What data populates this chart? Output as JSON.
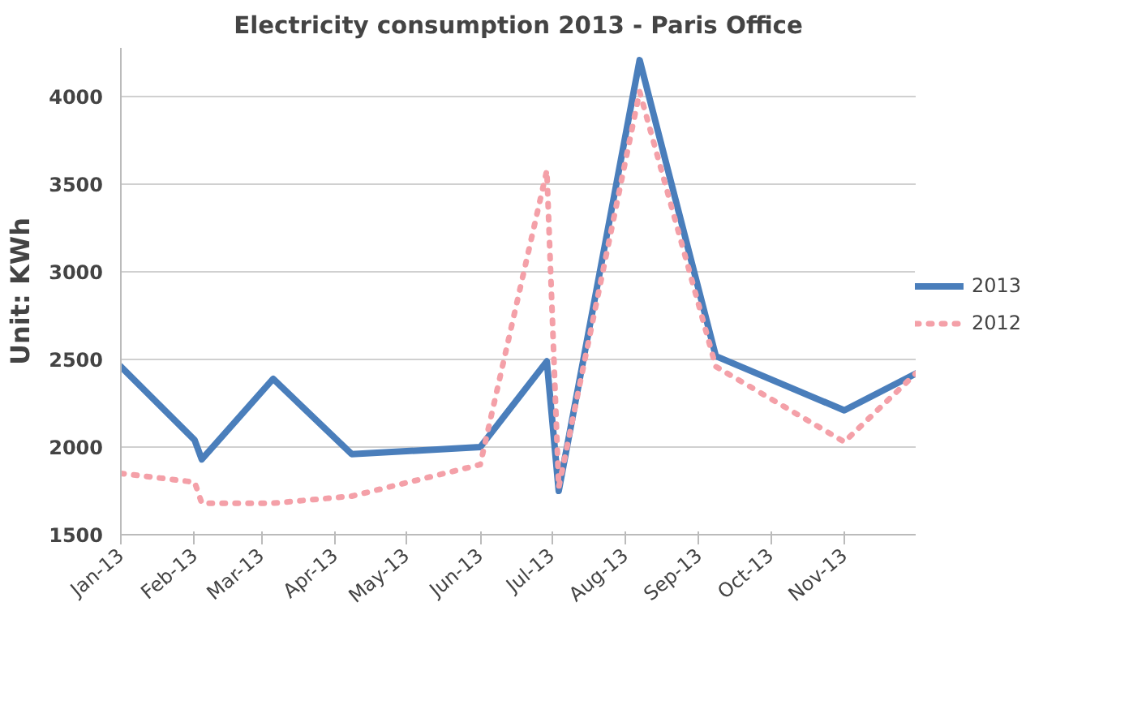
{
  "chart_data": {
    "type": "line",
    "title": "Electricity consumption 2013 - Paris Office",
    "ylabel": "Unit: KWh",
    "xlim": [
      "2013-01-01",
      "2013-12-01"
    ],
    "xticks": [
      {
        "value": "2013-01-01",
        "label": "Jan-13"
      },
      {
        "value": "2013-02-01",
        "label": "Feb-13"
      },
      {
        "value": "2013-03-01",
        "label": "Mar-13"
      },
      {
        "value": "2013-04-01",
        "label": "Apr-13"
      },
      {
        "value": "2013-05-01",
        "label": "May-13"
      },
      {
        "value": "2013-06-01",
        "label": "Jun-13"
      },
      {
        "value": "2013-07-01",
        "label": "Jul-13"
      },
      {
        "value": "2013-08-01",
        "label": "Aug-13"
      },
      {
        "value": "2013-09-01",
        "label": "Sep-13"
      },
      {
        "value": "2013-10-01",
        "label": "Oct-13"
      },
      {
        "value": "2013-11-01",
        "label": "Nov-13"
      }
    ],
    "ylim": [
      1500,
      4280
    ],
    "yticks": [
      1500,
      2000,
      2500,
      3000,
      3500,
      4000
    ],
    "grid": "y",
    "legend": "right",
    "marker": "none",
    "series": [
      {
        "name": "2013",
        "color": "#4a7ebb",
        "line_style": "solid",
        "x": [
          "2013-01-01",
          "2013-02-01",
          "2013-02-04",
          "2013-03-06",
          "2013-04-08",
          "2013-06-01",
          "2013-06-29",
          "2013-07-04",
          "2013-08-07",
          "2013-09-08",
          "2013-11-01",
          "2013-12-01"
        ],
        "values": [
          2460,
          2040,
          1930,
          2390,
          1960,
          2000,
          2490,
          1750,
          4210,
          2520,
          2210,
          2420
        ]
      },
      {
        "name": "2012",
        "color": "#f4a0a8",
        "line_style": "dotted",
        "x": [
          "2013-01-01",
          "2013-02-01",
          "2013-02-04",
          "2013-03-06",
          "2013-04-08",
          "2013-06-01",
          "2013-06-29",
          "2013-07-04",
          "2013-08-07",
          "2013-09-08",
          "2013-11-01",
          "2013-12-01"
        ],
        "values": [
          1850,
          1800,
          1680,
          1680,
          1720,
          1900,
          3580,
          1770,
          4030,
          2460,
          2030,
          2420
        ]
      }
    ]
  }
}
